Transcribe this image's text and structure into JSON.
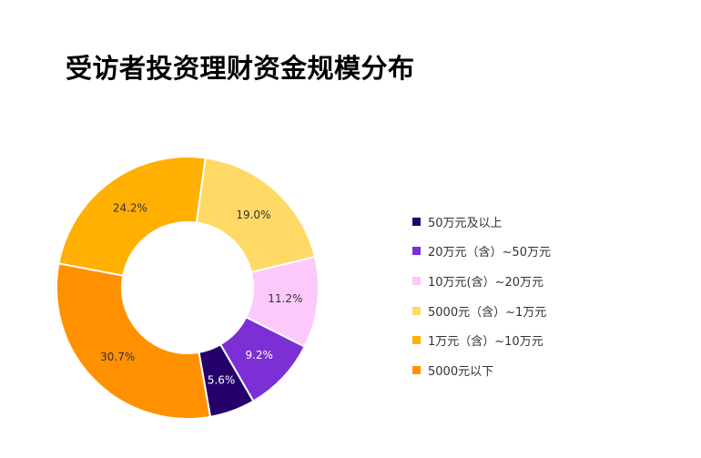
{
  "title": "受访者投资理财资金规模分布",
  "chart_data": {
    "type": "pie",
    "variant": "donut",
    "title": "受访者投资理财资金规模分布",
    "legend_position": "right",
    "slices": [
      {
        "label": "50万元及以上",
        "value": 5.6,
        "value_label": "5.6%",
        "color": "#25006b",
        "label_color": "#ffffff"
      },
      {
        "label": "20万元（含）~50万元",
        "value": 9.2,
        "value_label": "9.2%",
        "color": "#7b2fd4",
        "label_color": "#ffffff"
      },
      {
        "label": "10万元(含）~20万元",
        "value": 11.2,
        "value_label": "11.2%",
        "color": "#fdc9fd",
        "label_color": "#333333"
      },
      {
        "label": "5000元（含）~1万元",
        "value": 19.0,
        "value_label": "19.0%",
        "color": "#ffd966",
        "label_color": "#333333"
      },
      {
        "label": "1万元（含）~10万元",
        "value": 24.2,
        "value_label": "24.2%",
        "color": "#ffb000",
        "label_color": "#333333"
      },
      {
        "label": "5000元以下",
        "value": 30.7,
        "value_label": "30.7%",
        "color": "#ff9100",
        "label_color": "#333333"
      }
    ]
  }
}
